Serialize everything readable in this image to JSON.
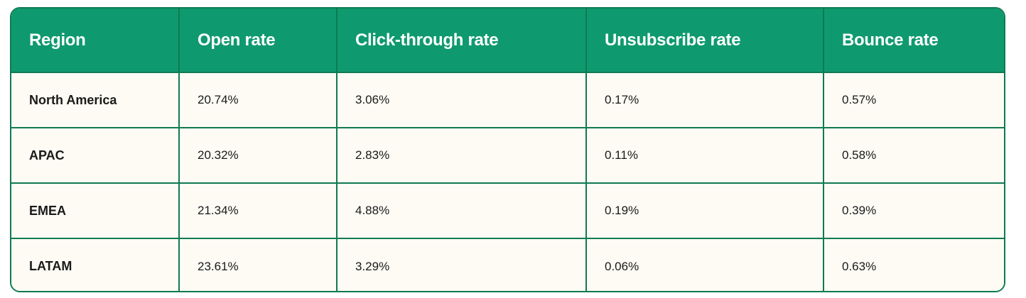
{
  "table": {
    "headers": [
      "Region",
      "Open rate",
      "Click-through rate",
      "Unsubscribe rate",
      "Bounce rate"
    ],
    "rows": [
      [
        "North America",
        "20.74%",
        "3.06%",
        "0.17%",
        "0.57%"
      ],
      [
        "APAC",
        "20.32%",
        "2.83%",
        "0.11%",
        "0.58%"
      ],
      [
        "EMEA",
        "21.34%",
        "4.88%",
        "0.19%",
        "0.39%"
      ],
      [
        "LATAM",
        "23.61%",
        "3.29%",
        "0.06%",
        "0.63%"
      ]
    ]
  },
  "colors": {
    "header_background": "#0e9a6e",
    "border": "#0f7a52",
    "cell_background": "#fdfbf4",
    "header_text": "#ffffff"
  }
}
